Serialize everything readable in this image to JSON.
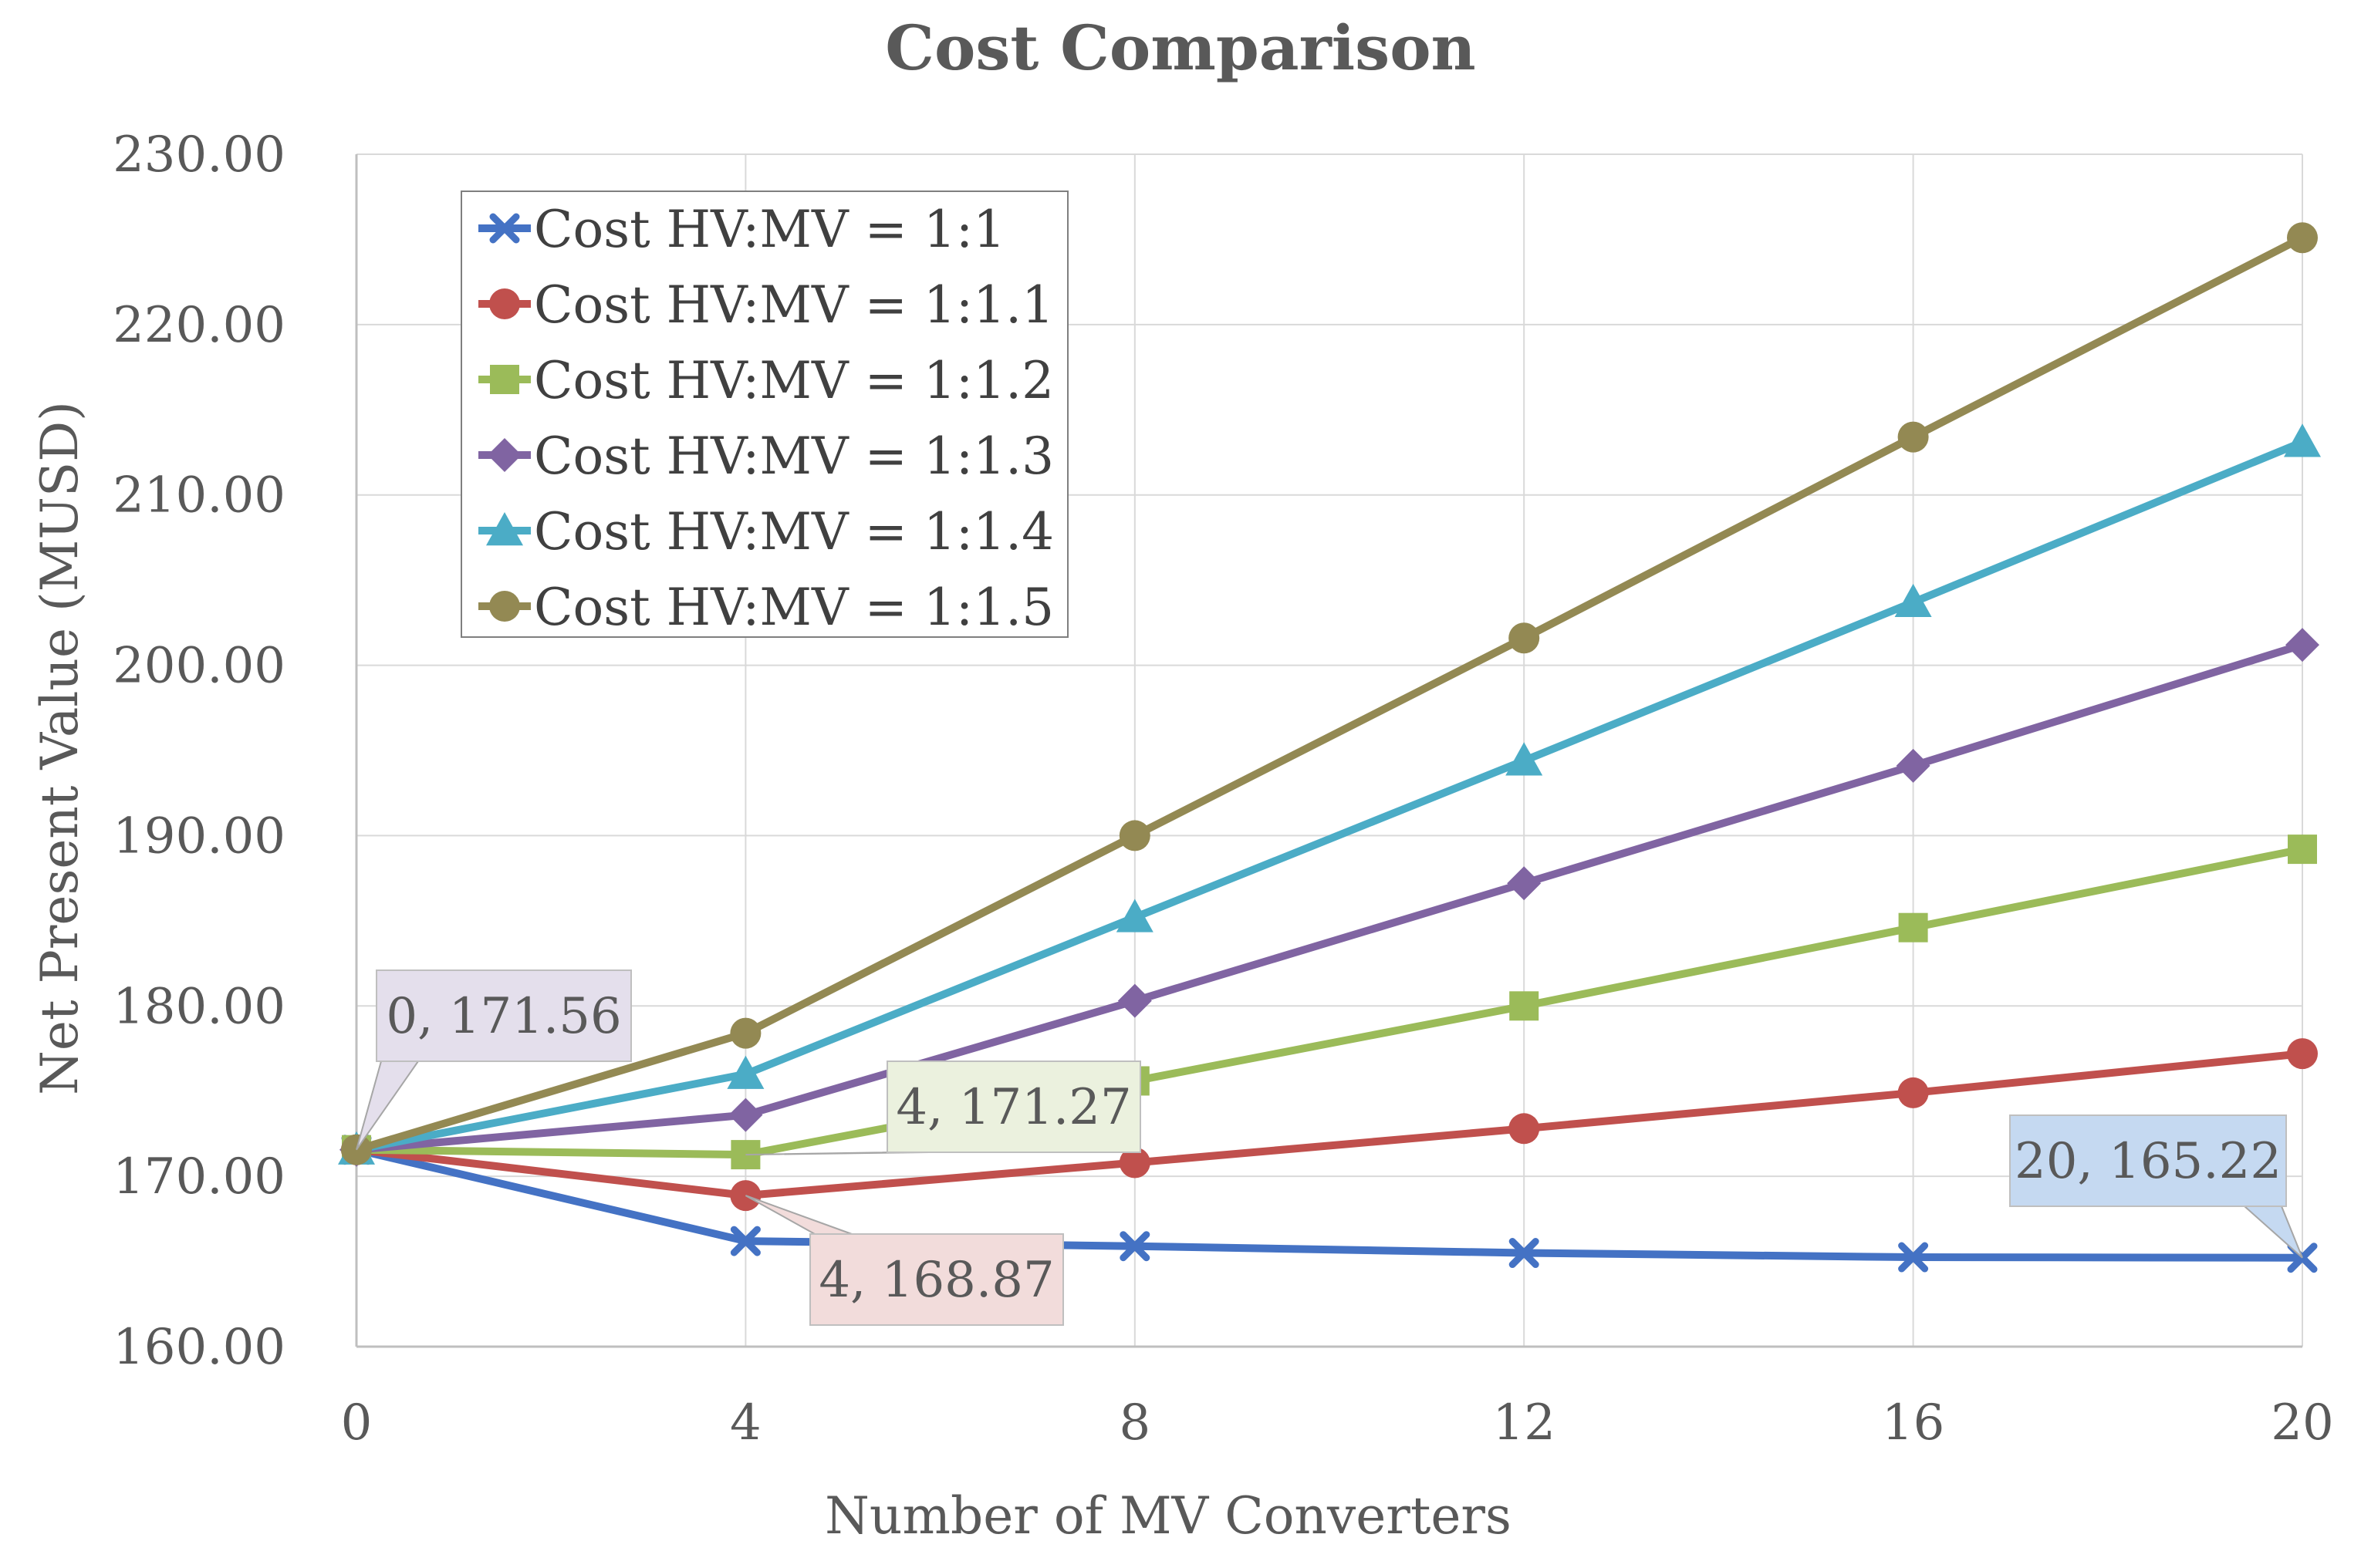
{
  "chart_data": {
    "type": "line",
    "title": "Cost Comparison",
    "xlabel": "Number of MV Converters",
    "ylabel": "Net Present Value (MUSD)",
    "x": [
      0,
      4,
      8,
      12,
      16,
      20
    ],
    "xlim": [
      0,
      20
    ],
    "ylim": [
      160,
      230
    ],
    "x_ticks": [
      "0",
      "4",
      "8",
      "12",
      "16",
      "20"
    ],
    "y_ticks": [
      "160.00",
      "170.00",
      "180.00",
      "190.00",
      "200.00",
      "210.00",
      "220.00",
      "230.00"
    ],
    "grid": true,
    "legend_position": "top-left",
    "series": [
      {
        "name": "Cost HV:MV = 1:1",
        "color": "#4472C4",
        "marker": "x",
        "values": [
          171.56,
          166.2,
          165.9,
          165.5,
          165.25,
          165.22
        ]
      },
      {
        "name": "Cost HV:MV = 1:1.1",
        "color": "#C0504D",
        "marker": "circle",
        "values": [
          171.56,
          168.87,
          170.8,
          172.8,
          174.9,
          177.2
        ]
      },
      {
        "name": "Cost HV:MV = 1:1.2",
        "color": "#9BBB59",
        "marker": "square",
        "values": [
          171.56,
          171.27,
          175.6,
          180.0,
          184.6,
          189.2
        ]
      },
      {
        "name": "Cost HV:MV = 1:1.3",
        "color": "#8064A2",
        "marker": "diamond",
        "values": [
          171.56,
          173.6,
          180.3,
          187.2,
          194.1,
          201.2
        ]
      },
      {
        "name": "Cost HV:MV = 1:1.4",
        "color": "#4BACC6",
        "marker": "triangle",
        "values": [
          171.56,
          176.0,
          185.2,
          194.4,
          203.7,
          213.1
        ]
      },
      {
        "name": "Cost HV:MV = 1:1.5",
        "color": "#938953",
        "marker": "circle",
        "values": [
          171.56,
          178.4,
          190.0,
          201.6,
          213.4,
          225.1
        ]
      }
    ],
    "annotations": [
      {
        "text": "0,  171.56",
        "x": 0,
        "y": 171.56,
        "series_index": 5,
        "fill": "#E4DFEC"
      },
      {
        "text": "4,  171.27",
        "x": 4,
        "y": 171.27,
        "series_index": 2,
        "fill": "#EBF1DE"
      },
      {
        "text": "4,  168.87",
        "x": 4,
        "y": 168.87,
        "series_index": 1,
        "fill": "#F2DCDB"
      },
      {
        "text": "20,  165.22",
        "x": 20,
        "y": 165.22,
        "series_index": 0,
        "fill": "#C5D9F1"
      }
    ]
  }
}
